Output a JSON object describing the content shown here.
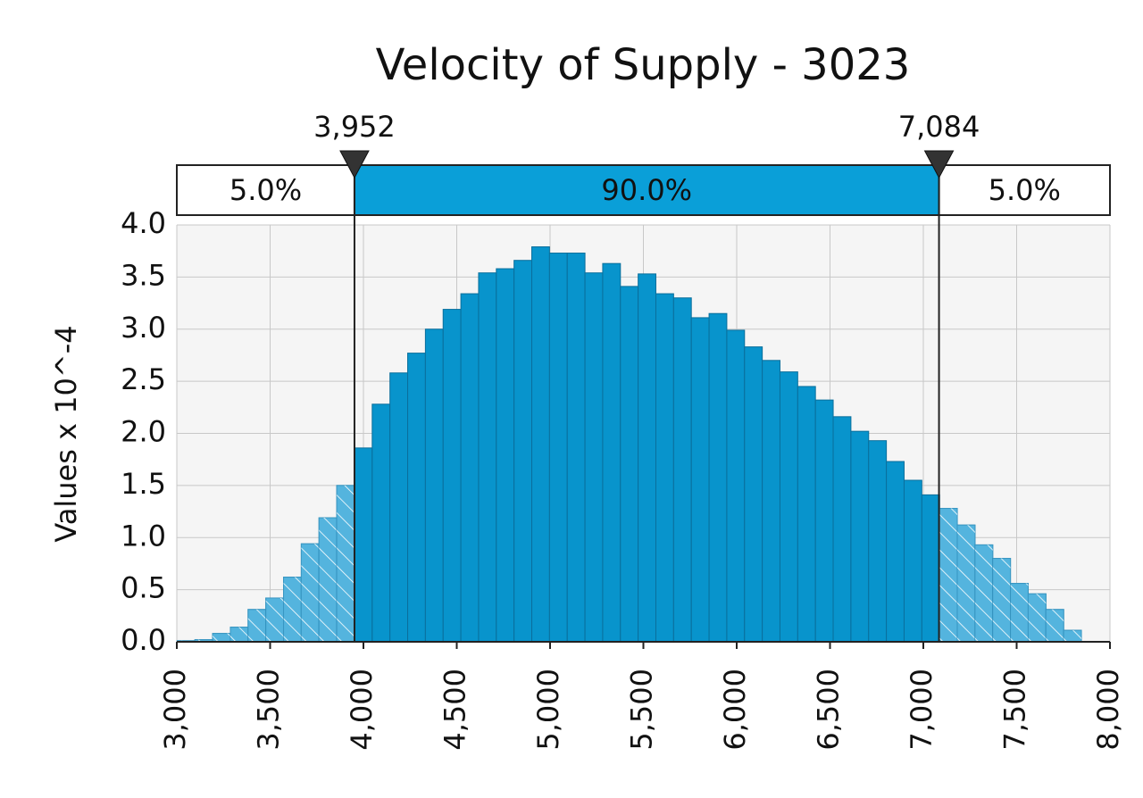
{
  "chart_data": {
    "type": "histogram",
    "title": "Velocity of Supply - 3023",
    "ylabel": "Values x 10^-4",
    "bins": [
      3002,
      3097,
      3192,
      3287,
      3382,
      3477,
      3572,
      3667,
      3762,
      3857,
      3952,
      4047,
      4142,
      4237,
      4332,
      4427,
      4522,
      4617,
      4712,
      4807,
      4902,
      4997,
      5092,
      5187,
      5282,
      5377,
      5472,
      5567,
      5662,
      5757,
      5852,
      5947,
      6042,
      6137,
      6232,
      6327,
      6422,
      6517,
      6612,
      6707,
      6802,
      6897,
      6992,
      7087,
      7182,
      7277,
      7372,
      7467,
      7562,
      7657,
      7752,
      7847
    ],
    "values": [
      0.01,
      0.02,
      0.08,
      0.14,
      0.31,
      0.42,
      0.62,
      0.94,
      1.19,
      1.5,
      1.86,
      2.28,
      2.58,
      2.77,
      3.0,
      3.19,
      3.34,
      3.54,
      3.58,
      3.66,
      3.79,
      3.73,
      3.73,
      3.54,
      3.63,
      3.41,
      3.53,
      3.34,
      3.3,
      3.11,
      3.15,
      2.99,
      2.83,
      2.7,
      2.59,
      2.45,
      2.32,
      2.16,
      2.02,
      1.93,
      1.73,
      1.55,
      1.41,
      1.28,
      1.12,
      0.93,
      0.8,
      0.56,
      0.46,
      0.31,
      0.11
    ],
    "color": "#0894cc",
    "tail_color": "#54b4de",
    "delimiters": [
      {
        "value": 3952,
        "label": "3,952"
      },
      {
        "value": 7084,
        "label": "7,084"
      }
    ],
    "regions": [
      {
        "value": 5,
        "label": "5.0%"
      },
      {
        "value": 90,
        "label": "90.0%"
      },
      {
        "value": 5,
        "label": "5.0%"
      }
    ],
    "xlim": [
      3000,
      8000
    ],
    "xticks": [
      {
        "value": 3000,
        "label": "3,000"
      },
      {
        "value": 3500,
        "label": "3,500"
      },
      {
        "value": 4000,
        "label": "4,000"
      },
      {
        "value": 4500,
        "label": "4,500"
      },
      {
        "value": 5000,
        "label": "5,000"
      },
      {
        "value": 5500,
        "label": "5,500"
      },
      {
        "value": 6000,
        "label": "6,000"
      },
      {
        "value": 6500,
        "label": "6,500"
      },
      {
        "value": 7000,
        "label": "7,000"
      },
      {
        "value": 7500,
        "label": "7,500"
      },
      {
        "value": 8000,
        "label": "8,000"
      }
    ],
    "ylim": [
      0,
      4
    ],
    "yticks": [
      {
        "value": 0,
        "label": "0.0"
      },
      0.5,
      {
        "value": 1,
        "label": "1.0"
      },
      1.5,
      {
        "value": 2,
        "label": "2.0"
      },
      2.5,
      {
        "value": 3,
        "label": "3.0"
      },
      3.5,
      {
        "value": 4,
        "label": "4.0"
      }
    ],
    "grid": true
  }
}
